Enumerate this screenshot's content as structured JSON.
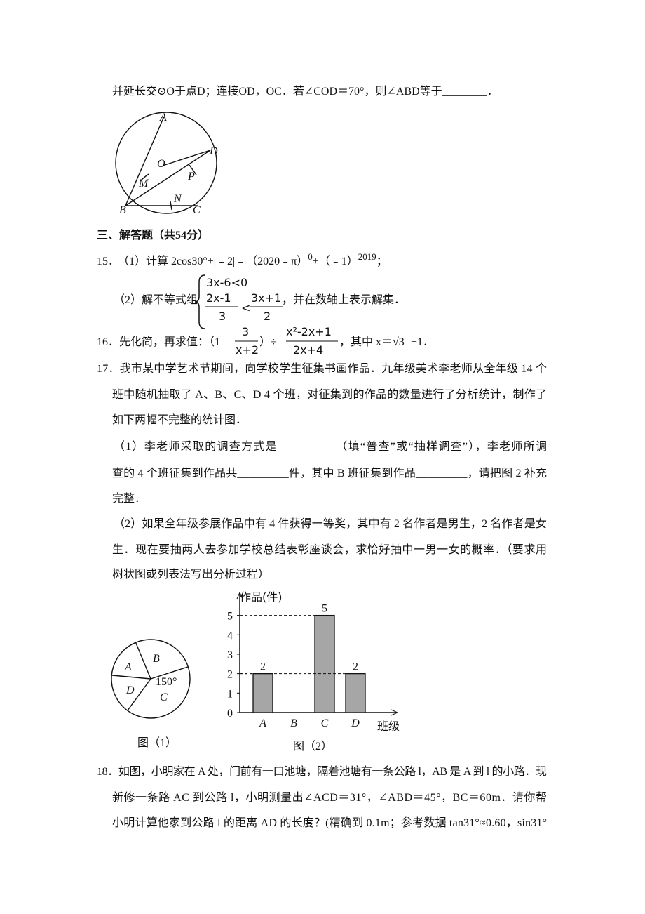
{
  "q14": {
    "text": "并延长交⊙O于点D；连接OD，OC．若∠COD＝70°，则∠ABD等于________．",
    "figure_labels": [
      "A",
      "M",
      "O",
      "D",
      "P",
      "B",
      "N",
      "C"
    ]
  },
  "section_title": "三、解答题（共54分）",
  "q15": {
    "number": "15．",
    "part1": [
      "（1）计算 2cos30°+|﹣2|﹣（2020﹣π）",
      "0",
      "+（﹣1）",
      "2019",
      "；"
    ],
    "part2_prefix": "（2）解不等式组",
    "system_line1": "3x-6<0",
    "system_line2": [
      "2x-1",
      "3",
      "<",
      "3x+1",
      "2"
    ],
    "part2_suffix": "，并在数轴上表示解集．"
  },
  "q16": {
    "prefix": "16．先化简，再求值：（1﹣",
    "frac1": [
      "3",
      "x+2"
    ],
    "middle": "）÷",
    "frac2": [
      "x²-2x+1",
      "2x+4"
    ],
    "tail": "，其中 x＝",
    "root": "√3",
    "end": "+1．"
  },
  "q17": {
    "lines": [
      "17．我市某中学艺术节期间，向学校学生征集书画作品．九年级美术李老师从全年级 14 个",
      "班中随机抽取了 A、B、C、D 4 个班，对征集到的作品的数量进行了分析统计，制作了",
      "如下两幅不完整的统计图．",
      "（1）李老师采取的调查方式是_________（填“普查”或“抽样调查”），李老师所调",
      "查的 4 个班征集到作品共_________件，其中 B 班征集到作品_________，请把图 2 补充",
      "完整．",
      "（2）如果全年级参展作品中有 4 件获得一等奖，其中有 2 名作者是男生，2 名作者是女",
      "生．现在要抽两人去参加学校总结表彰座谈会，求恰好抽中一男一女的概率．（要求用",
      "树状图或列表法写出分析过程）"
    ],
    "pie": {
      "labels": [
        "A",
        "B",
        "D",
        "150°",
        "C"
      ],
      "caption": "图（1）"
    }
  },
  "chart_data": {
    "type": "bar",
    "y_label": "作品(件)",
    "x_label": "班级",
    "caption": "图（2）",
    "categories": [
      "A",
      "B",
      "C",
      "D"
    ],
    "values": [
      2,
      null,
      5,
      2
    ],
    "color": "#a6a6a6",
    "ylim": [
      0,
      5.6
    ],
    "yticks": [
      0,
      1,
      2,
      3,
      4,
      5
    ]
  },
  "q18": {
    "lines": [
      "18．如图，小明家在 A 处，门前有一口池塘，隔着池塘有一条公路 l，AB 是 A 到 l 的小路．现",
      "新修一条路 AC 到公路 l，小明测量出∠ACD＝31°，∠ABD＝45°，BC＝60m．请你帮",
      "小明计算他家到公路 l 的距离 AD 的长度？(精确到 0.1m；参考数据 tan31°≈0.60，sin31°"
    ]
  }
}
